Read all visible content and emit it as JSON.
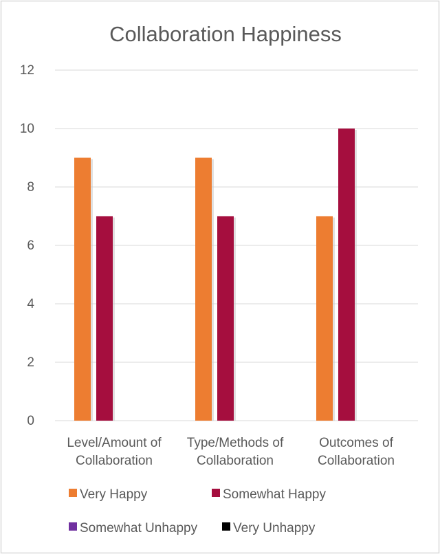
{
  "chart_data": {
    "type": "bar",
    "title": "Collaboration Happiness",
    "xlabel": "",
    "ylabel": "",
    "categories": [
      [
        "Level/Amount of",
        "Collaboration"
      ],
      [
        "Type/Methods of",
        "Collaboration"
      ],
      [
        "Outcomes of",
        "Collaboration"
      ]
    ],
    "series": [
      {
        "name": "Very Happy",
        "color": "#ED7D31",
        "values": [
          9,
          9,
          7
        ]
      },
      {
        "name": "Somewhat Happy",
        "color": "#A50E3E",
        "values": [
          7,
          7,
          10
        ]
      },
      {
        "name": "Somewhat Unhappy",
        "color": "#7030A0",
        "values": [
          0,
          0,
          0
        ]
      },
      {
        "name": "Very Unhappy",
        "color": "#000000",
        "values": [
          0,
          0,
          0
        ]
      }
    ],
    "ylim": [
      0,
      12
    ],
    "yticks": [
      0,
      2,
      4,
      6,
      8,
      10,
      12
    ],
    "grid": true,
    "legend_position": "bottom"
  }
}
